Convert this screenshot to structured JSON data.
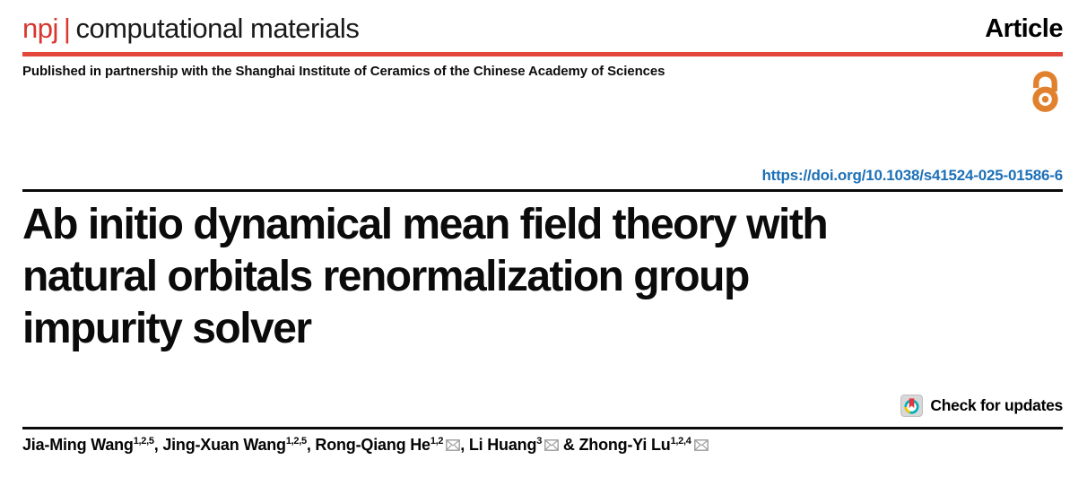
{
  "colors": {
    "brand_red": "#e2473a",
    "npj_red": "#d8362e",
    "text_black": "#000000",
    "title_black": "#0b0b0b",
    "link_blue": "#1d70b7",
    "open_access_orange": "#e1812e",
    "crossmark_teal": "#00b0ba",
    "crossmark_yellow": "#fdc800",
    "crossmark_red": "#e23540",
    "crossmark_bg": "#d8d8d8",
    "envelope_gray": "#a2a2a2"
  },
  "icons": {
    "open_access": "open-access-icon",
    "crossmark": "crossmark-icon",
    "correspondence": "envelope-icon"
  },
  "header": {
    "journal_prefix": "npj",
    "separator": "|",
    "journal_name": "computational materials",
    "article_type": "Article",
    "partnership_note": "Published in partnership with the Shanghai Institute of Ceramics of the Chinese Academy of Sciences"
  },
  "doi_link": "https://doi.org/10.1038/s41524-025-01586-6",
  "title_lines": [
    "Ab initio dynamical mean field theory with",
    "natural orbitals renormalization group",
    "impurity solver"
  ],
  "update_badge": {
    "label": "Check for updates"
  },
  "authors": {
    "list": [
      {
        "name": "Jia-Ming Wang",
        "sup": "1,2,5",
        "corresponding": false,
        "suffix": ", "
      },
      {
        "name": "Jing-Xuan Wang",
        "sup": "1,2,5",
        "corresponding": false,
        "suffix": ", "
      },
      {
        "name": "Rong-Qiang He",
        "sup": "1,2",
        "corresponding": true,
        "suffix": ", "
      },
      {
        "name": "Li Huang",
        "sup": "3",
        "corresponding": true,
        "suffix": " & "
      },
      {
        "name": "Zhong-Yi Lu",
        "sup": "1,2,4",
        "corresponding": true,
        "suffix": ""
      }
    ]
  }
}
